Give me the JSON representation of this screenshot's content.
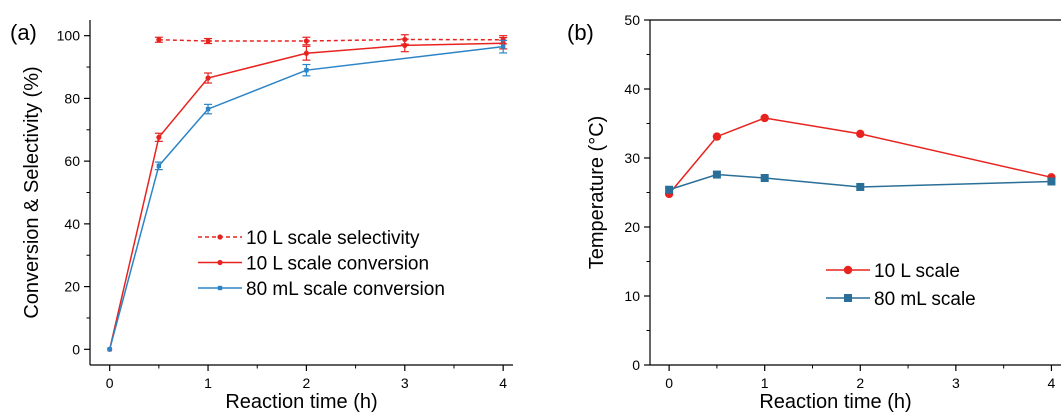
{
  "chart_data": [
    {
      "panel_label": "(a)",
      "type": "line",
      "xlabel": "Reaction time (h)",
      "ylabel": "Conversion & Selectivity (%)",
      "xlim": [
        -0.2,
        4.1
      ],
      "ylim": [
        -5,
        105
      ],
      "xticks": [
        0,
        1,
        2,
        3,
        4
      ],
      "yticks": [
        0,
        20,
        40,
        60,
        80,
        100
      ],
      "grid": false,
      "legend_position": "bottom-right",
      "series": [
        {
          "name": "10 L scale selectivity",
          "color": "#e8231f",
          "dashed": true,
          "marker": "circle",
          "x": [
            0.5,
            1,
            2,
            3,
            4
          ],
          "y": [
            98.7,
            98.3,
            98.3,
            98.8,
            98.7
          ],
          "err": [
            0.8,
            0.8,
            1.2,
            1.5,
            1.3
          ]
        },
        {
          "name": "10 L scale conversion",
          "color": "#e8231f",
          "dashed": false,
          "marker": "circle",
          "x": [
            0,
            0.5,
            1,
            2,
            3,
            4
          ],
          "y": [
            0,
            67.6,
            86.5,
            94.4,
            96.9,
            97.6
          ],
          "err": [
            0,
            1.3,
            1.6,
            2.2,
            2.0,
            1.8
          ]
        },
        {
          "name": "80 mL scale conversion",
          "color": "#2c84c7",
          "dashed": false,
          "marker": "square",
          "x": [
            0,
            0.5,
            1,
            2,
            4
          ],
          "y": [
            0,
            58.5,
            76.6,
            89.0,
            96.5
          ],
          "err": [
            0,
            1.2,
            1.5,
            1.8,
            2.0
          ]
        }
      ]
    },
    {
      "panel_label": "(b)",
      "type": "line",
      "xlabel": "Reaction time (h)",
      "ylabel": "Temperature (°C)",
      "xlim": [
        -0.2,
        4.1
      ],
      "ylim": [
        0,
        50
      ],
      "xticks": [
        0,
        1,
        2,
        3,
        4
      ],
      "yticks": [
        0,
        10,
        20,
        30,
        40,
        50
      ],
      "grid": false,
      "legend_position": "bottom-right",
      "series": [
        {
          "name": "10 L scale",
          "color": "#e8231f",
          "dashed": false,
          "marker": "circle",
          "x": [
            0,
            0.5,
            1,
            2,
            4
          ],
          "y": [
            24.8,
            33.1,
            35.8,
            33.5,
            27.2
          ]
        },
        {
          "name": "80 mL scale",
          "color": "#2a6f97",
          "dashed": false,
          "marker": "square",
          "x": [
            0,
            0.5,
            1,
            2,
            4
          ],
          "y": [
            25.4,
            27.6,
            27.1,
            25.8,
            26.6
          ]
        }
      ]
    }
  ]
}
